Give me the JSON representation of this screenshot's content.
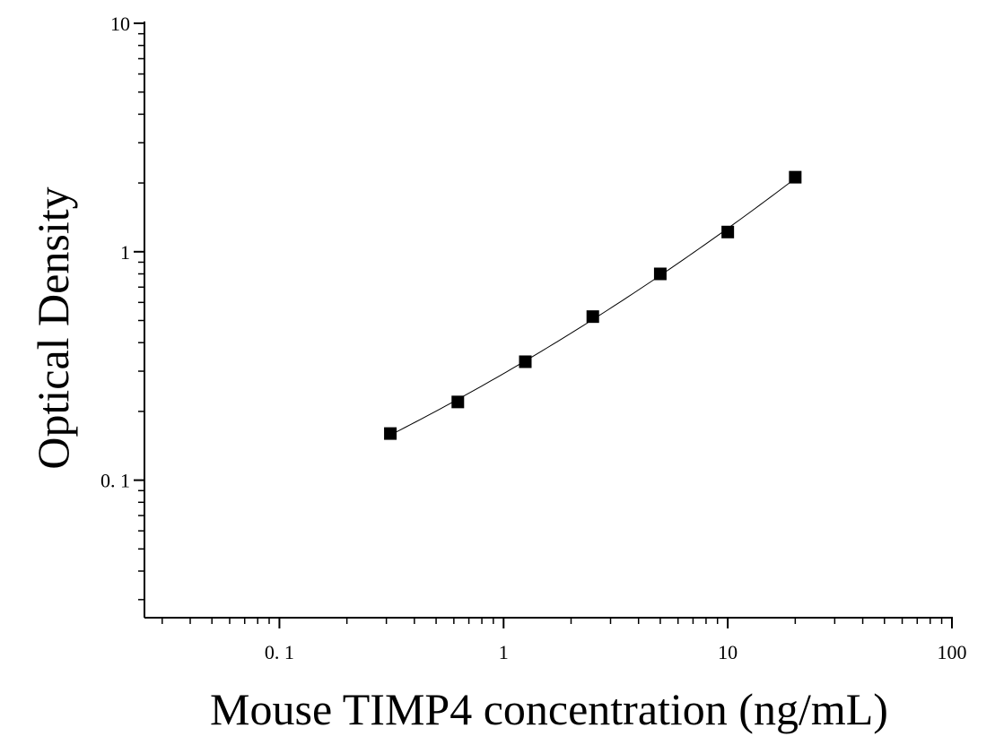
{
  "chart_data": {
    "type": "scatter",
    "title": "",
    "xlabel": "Mouse TIMP4 concentration (ng/mL)",
    "ylabel": "Optical Density",
    "x_scale": "log",
    "y_scale": "log",
    "xlim": [
      0.025,
      100
    ],
    "ylim": [
      0.025,
      10
    ],
    "x_ticks": [
      {
        "value": 0.1,
        "label": "0. 1"
      },
      {
        "value": 1,
        "label": "1"
      },
      {
        "value": 10,
        "label": "10"
      },
      {
        "value": 100,
        "label": "100"
      }
    ],
    "y_ticks": [
      {
        "value": 0.1,
        "label": "0. 1"
      },
      {
        "value": 1,
        "label": "1"
      },
      {
        "value": 10,
        "label": "10"
      }
    ],
    "grid": false,
    "series": [
      {
        "x": [
          0.3125,
          0.625,
          1.25,
          2.5,
          5,
          10,
          20
        ],
        "y": [
          0.16,
          0.22,
          0.33,
          0.52,
          0.8,
          1.22,
          2.12
        ]
      }
    ],
    "fit_curve": true,
    "colors": {
      "marker": "#000000",
      "curve": "#000000",
      "axis": "#000000"
    }
  }
}
